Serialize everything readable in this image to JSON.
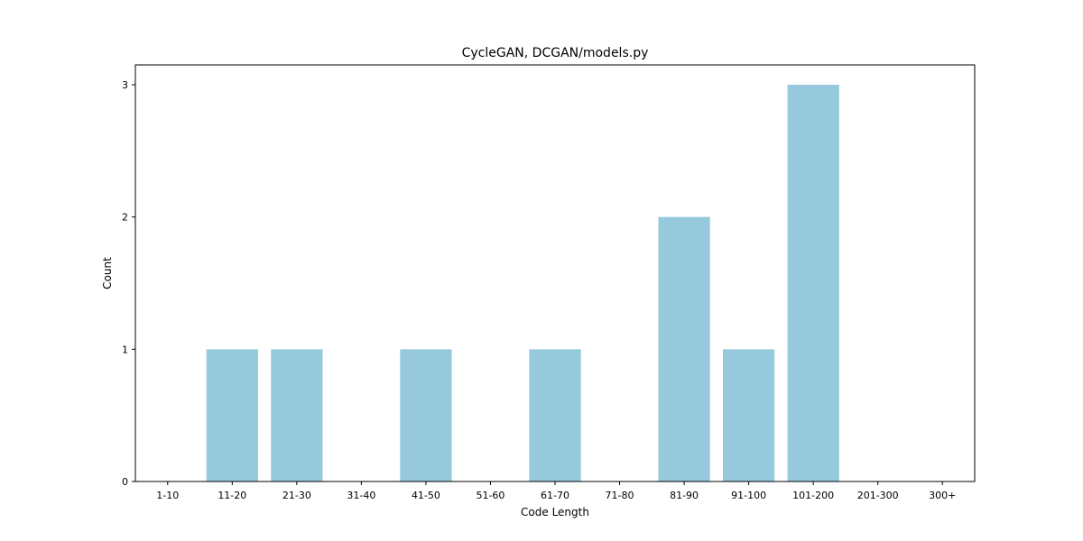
{
  "chart_data": {
    "type": "bar",
    "title": "CycleGAN, DCGAN/models.py",
    "xlabel": "Code Length",
    "ylabel": "Count",
    "categories": [
      "1-10",
      "11-20",
      "21-30",
      "31-40",
      "41-50",
      "51-60",
      "61-70",
      "71-80",
      "81-90",
      "91-100",
      "101-200",
      "201-300",
      "300+"
    ],
    "values": [
      0,
      1,
      1,
      0,
      1,
      0,
      1,
      0,
      2,
      1,
      3,
      0,
      0
    ],
    "ylim": [
      0,
      3.15
    ],
    "yticks": [
      0,
      1,
      2,
      3
    ],
    "grid": false,
    "legend": "none",
    "bar_color": "#96c9dc"
  }
}
